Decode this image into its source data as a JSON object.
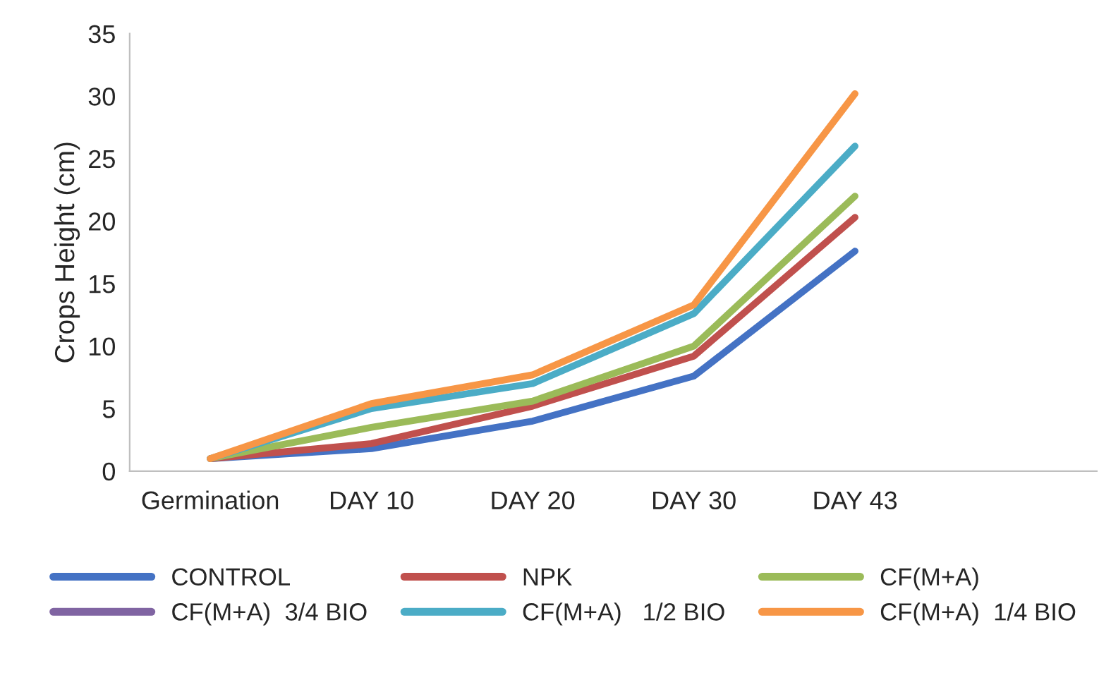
{
  "chart_data": {
    "type": "line",
    "ylabel": "Crops Height (cm)",
    "categories": [
      "Germination",
      "DAY 10",
      "DAY 20",
      "DAY 30",
      "DAY 43",
      null
    ],
    "series": [
      {
        "name": "CONTROL",
        "color": "#4472c4",
        "values": [
          1,
          1.8,
          4,
          7.6,
          17.6,
          null
        ]
      },
      {
        "name": "NPK",
        "color": "#c0504d",
        "values": [
          1,
          2.2,
          5.2,
          9.2,
          20.3,
          null
        ]
      },
      {
        "name": "CF(M+A)",
        "color": "#9bbb59",
        "values": [
          1,
          3.5,
          5.6,
          10,
          22,
          null
        ]
      },
      {
        "name": "CF(M+A)  3/4 BIO",
        "color": "#8064a2",
        "values": [
          null,
          null,
          null,
          null,
          null,
          null
        ]
      },
      {
        "name": "CF(M+A)   1/2 BIO",
        "color": "#4bacc6",
        "values": [
          1,
          5,
          7,
          12.6,
          26,
          null
        ]
      },
      {
        "name": "CF(M+A)  1/4 BIO",
        "color": "#f79646",
        "values": [
          1,
          5.4,
          7.7,
          13.3,
          30.2,
          null
        ]
      }
    ],
    "ylim": [
      0,
      35
    ],
    "yticks": [
      0,
      5,
      10,
      15,
      20,
      25,
      30,
      35
    ],
    "grid": false,
    "legend": "bottom",
    "marker": "none",
    "line_style": "solid"
  }
}
